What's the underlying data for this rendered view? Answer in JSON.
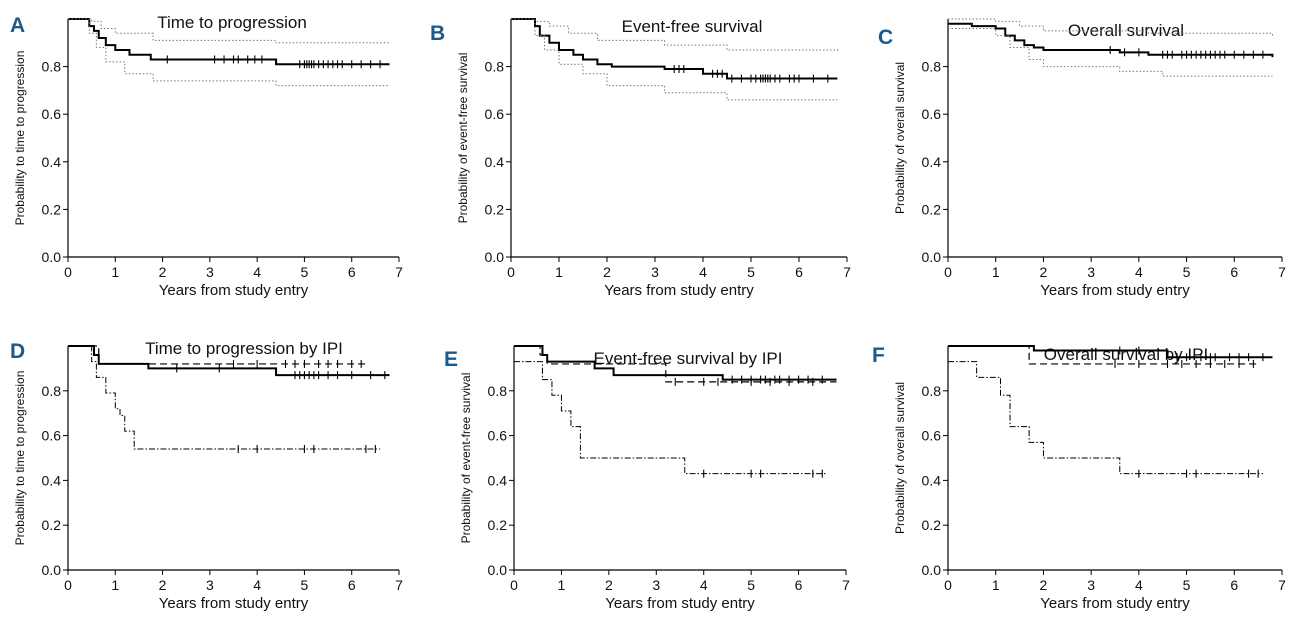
{
  "chart_data": [
    {
      "type": "line",
      "panel_letter": "A",
      "title": "Time to progression",
      "xlabel": "Years from study entry",
      "ylabel": "Probability to time to progression",
      "xlim": [
        0,
        7
      ],
      "ylim": [
        0,
        1
      ],
      "xticks": [
        0,
        1,
        2,
        3,
        4,
        5,
        6,
        7
      ],
      "yticks": [
        0.0,
        0.2,
        0.4,
        0.6,
        0.8
      ],
      "ytick_labels": [
        "0.0",
        "0.2",
        "0.4",
        "0.6",
        "0.8"
      ],
      "series": [
        {
          "style": "solid-step",
          "x": [
            0,
            0.45,
            0.55,
            0.65,
            0.8,
            1.0,
            1.3,
            1.75,
            4.4,
            6.8
          ],
          "y": [
            1.0,
            0.97,
            0.95,
            0.92,
            0.89,
            0.87,
            0.85,
            0.83,
            0.81,
            0.81
          ],
          "censor": [
            2.1,
            3.1,
            3.3,
            3.5,
            3.6,
            3.8,
            3.95,
            4.1,
            4.9,
            5.0,
            5.05,
            5.1,
            5.15,
            5.2,
            5.3,
            5.4,
            5.5,
            5.6,
            5.7,
            5.8,
            6.0,
            6.2,
            6.4,
            6.6
          ]
        },
        {
          "style": "dotted-ci",
          "x": [
            0,
            0.5,
            0.7,
            1.0,
            1.8,
            4.4,
            6.8
          ],
          "y": [
            1.0,
            0.99,
            0.96,
            0.94,
            0.91,
            0.9,
            0.9
          ]
        },
        {
          "style": "dotted-ci",
          "x": [
            0,
            0.45,
            0.6,
            0.8,
            1.2,
            1.8,
            4.4,
            6.8
          ],
          "y": [
            1.0,
            0.94,
            0.88,
            0.82,
            0.77,
            0.74,
            0.72,
            0.72
          ]
        }
      ]
    },
    {
      "type": "line",
      "panel_letter": "B",
      "title": "Event-free survival",
      "xlabel": "Years from study entry",
      "ylabel": "Probability of event-free survival",
      "xlim": [
        0,
        7
      ],
      "ylim": [
        0,
        1
      ],
      "xticks": [
        0,
        1,
        2,
        3,
        4,
        5,
        6,
        7
      ],
      "yticks": [
        0.0,
        0.2,
        0.4,
        0.6,
        0.8
      ],
      "ytick_labels": [
        "0.0",
        "0.2",
        "0.4",
        "0.6",
        "0.8"
      ],
      "series": [
        {
          "style": "solid-step",
          "x": [
            0,
            0.5,
            0.6,
            0.8,
            1.0,
            1.3,
            1.5,
            1.8,
            2.1,
            3.2,
            4.0,
            4.5,
            6.8
          ],
          "y": [
            1.0,
            0.97,
            0.93,
            0.9,
            0.87,
            0.85,
            0.83,
            0.81,
            0.8,
            0.79,
            0.77,
            0.75,
            0.75
          ],
          "censor": [
            3.4,
            3.5,
            3.6,
            4.2,
            4.3,
            4.4,
            4.6,
            4.8,
            5.0,
            5.1,
            5.2,
            5.25,
            5.3,
            5.35,
            5.4,
            5.5,
            5.6,
            5.8,
            5.9,
            6.0,
            6.3,
            6.6
          ]
        },
        {
          "style": "dotted-ci",
          "x": [
            0,
            0.5,
            0.8,
            1.2,
            1.8,
            3.2,
            4.5,
            6.8
          ],
          "y": [
            1.0,
            0.99,
            0.97,
            0.94,
            0.91,
            0.89,
            0.87,
            0.86
          ]
        },
        {
          "style": "dotted-ci",
          "x": [
            0,
            0.5,
            0.7,
            1.0,
            1.5,
            2.0,
            3.2,
            4.5,
            6.8
          ],
          "y": [
            1.0,
            0.93,
            0.87,
            0.81,
            0.77,
            0.72,
            0.69,
            0.66,
            0.66
          ]
        }
      ]
    },
    {
      "type": "line",
      "panel_letter": "C",
      "title": "Overall survival",
      "xlabel": "Years from study entry",
      "ylabel": "Probability of overall survival",
      "xlim": [
        0,
        7
      ],
      "ylim": [
        0,
        1
      ],
      "xticks": [
        0,
        1,
        2,
        3,
        4,
        5,
        6,
        7
      ],
      "yticks": [
        0.0,
        0.2,
        0.4,
        0.6,
        0.8
      ],
      "ytick_labels": [
        "0.0",
        "0.2",
        "0.4",
        "0.6",
        "0.8"
      ],
      "series": [
        {
          "style": "solid-step",
          "x": [
            0,
            0.5,
            1.0,
            1.2,
            1.4,
            1.6,
            1.8,
            2.0,
            3.6,
            4.2,
            6.8
          ],
          "y": [
            0.98,
            0.97,
            0.96,
            0.93,
            0.91,
            0.89,
            0.88,
            0.87,
            0.86,
            0.85,
            0.84
          ],
          "censor": [
            3.4,
            3.7,
            4.0,
            4.5,
            4.6,
            4.7,
            4.9,
            5.0,
            5.1,
            5.2,
            5.3,
            5.4,
            5.5,
            5.6,
            5.7,
            5.8,
            6.0,
            6.2,
            6.4,
            6.6
          ]
        },
        {
          "style": "dotted-ci",
          "x": [
            0,
            1.0,
            1.5,
            2.0,
            4.2,
            6.8
          ],
          "y": [
            1.0,
            0.99,
            0.97,
            0.95,
            0.94,
            0.93
          ]
        },
        {
          "style": "dotted-ci",
          "x": [
            0,
            1.0,
            1.3,
            1.7,
            2.0,
            3.6,
            4.5,
            6.8
          ],
          "y": [
            0.96,
            0.93,
            0.88,
            0.83,
            0.8,
            0.78,
            0.76,
            0.76
          ]
        }
      ]
    },
    {
      "type": "line",
      "panel_letter": "D",
      "title": "Time to progression by IPI",
      "xlabel": "Years from study entry",
      "ylabel": "Probability to time to progression",
      "xlim": [
        0,
        7
      ],
      "ylim": [
        0,
        1
      ],
      "xticks": [
        0,
        1,
        2,
        3,
        4,
        5,
        6,
        7
      ],
      "yticks": [
        0.0,
        0.2,
        0.4,
        0.6,
        0.8
      ],
      "ytick_labels": [
        "0.0",
        "0.2",
        "0.4",
        "0.6",
        "0.8"
      ],
      "series": [
        {
          "style": "solid-step",
          "x": [
            0,
            0.55,
            0.65,
            1.7,
            4.4,
            6.8
          ],
          "y": [
            1.0,
            0.96,
            0.92,
            0.9,
            0.87,
            0.87
          ],
          "censor": [
            2.3,
            3.2,
            4.8,
            4.9,
            5.0,
            5.1,
            5.2,
            5.3,
            5.5,
            5.7,
            6.0,
            6.4,
            6.7
          ]
        },
        {
          "style": "dashed-step",
          "x": [
            0,
            0.65,
            6.3
          ],
          "y": [
            1.0,
            0.92,
            0.92
          ],
          "censor": [
            3.5,
            4.0,
            4.6,
            4.8,
            5.0,
            5.3,
            5.5,
            5.7,
            6.0,
            6.2
          ]
        },
        {
          "style": "dashdot-step",
          "x": [
            0,
            0.5,
            0.6,
            0.8,
            1.0,
            1.1,
            1.2,
            1.4,
            6.6
          ],
          "y": [
            1.0,
            0.93,
            0.86,
            0.79,
            0.72,
            0.69,
            0.62,
            0.54,
            0.54
          ],
          "censor": [
            3.6,
            4.0,
            5.0,
            5.2,
            6.3,
            6.5
          ]
        }
      ]
    },
    {
      "type": "line",
      "panel_letter": "E",
      "title": "Event-free survival by IPI",
      "xlabel": "Years from study entry",
      "ylabel": "Probability of event-free survival",
      "xlim": [
        0,
        7
      ],
      "ylim": [
        0,
        1
      ],
      "xticks": [
        0,
        1,
        2,
        3,
        4,
        5,
        6,
        7
      ],
      "yticks": [
        0.0,
        0.2,
        0.4,
        0.6,
        0.8
      ],
      "ytick_labels": [
        "0.0",
        "0.2",
        "0.4",
        "0.6",
        "0.8"
      ],
      "series": [
        {
          "style": "solid-step",
          "x": [
            0,
            0.6,
            0.7,
            1.7,
            2.1,
            4.4,
            6.8
          ],
          "y": [
            1.0,
            0.96,
            0.93,
            0.9,
            0.87,
            0.85,
            0.85
          ],
          "censor": [
            4.6,
            4.8,
            5.0,
            5.2,
            5.3,
            5.5,
            5.6,
            5.8,
            6.0,
            6.2,
            6.5
          ]
        },
        {
          "style": "dashed-step",
          "x": [
            0,
            0.55,
            0.7,
            3.2,
            6.8
          ],
          "y": [
            1.0,
            0.96,
            0.92,
            0.84,
            0.84
          ],
          "censor": [
            3.4,
            4.0,
            4.3,
            5.0,
            5.4,
            5.8,
            6.3
          ]
        },
        {
          "style": "dashdot-step",
          "x": [
            0,
            0.6,
            0.8,
            1.0,
            1.2,
            1.4,
            3.6,
            6.6
          ],
          "y": [
            0.93,
            0.85,
            0.78,
            0.71,
            0.64,
            0.5,
            0.43,
            0.43
          ],
          "censor": [
            4.0,
            5.0,
            5.2,
            6.3,
            6.5
          ]
        }
      ]
    },
    {
      "type": "line",
      "panel_letter": "F",
      "title": "Overall survival by IPI",
      "xlabel": "Years from study entry",
      "ylabel": "Probability of overall survival",
      "xlim": [
        0,
        7
      ],
      "ylim": [
        0,
        1
      ],
      "xticks": [
        0,
        1,
        2,
        3,
        4,
        5,
        6,
        7
      ],
      "yticks": [
        0.0,
        0.2,
        0.4,
        0.6,
        0.8
      ],
      "ytick_labels": [
        "0.0",
        "0.2",
        "0.4",
        "0.6",
        "0.8"
      ],
      "series": [
        {
          "style": "solid-step",
          "x": [
            0,
            1.8,
            4.6,
            6.8
          ],
          "y": [
            1.0,
            0.98,
            0.95,
            0.95
          ],
          "censor": [
            3.6,
            4.0,
            4.8,
            5.0,
            5.3,
            5.5,
            5.6,
            5.9,
            6.1,
            6.3,
            6.6
          ]
        },
        {
          "style": "dashed-step",
          "x": [
            0,
            1.7,
            6.5
          ],
          "y": [
            1.0,
            0.92,
            0.92
          ],
          "censor": [
            3.5,
            4.0,
            4.6,
            4.9,
            5.2,
            5.5,
            5.8,
            6.1,
            6.4
          ]
        },
        {
          "style": "dashdot-step",
          "x": [
            0,
            0.6,
            1.1,
            1.3,
            1.7,
            2.0,
            3.6,
            6.6
          ],
          "y": [
            0.93,
            0.86,
            0.78,
            0.64,
            0.57,
            0.5,
            0.43,
            0.43
          ],
          "censor": [
            4.0,
            5.0,
            5.2,
            6.3,
            6.5
          ]
        }
      ]
    }
  ]
}
